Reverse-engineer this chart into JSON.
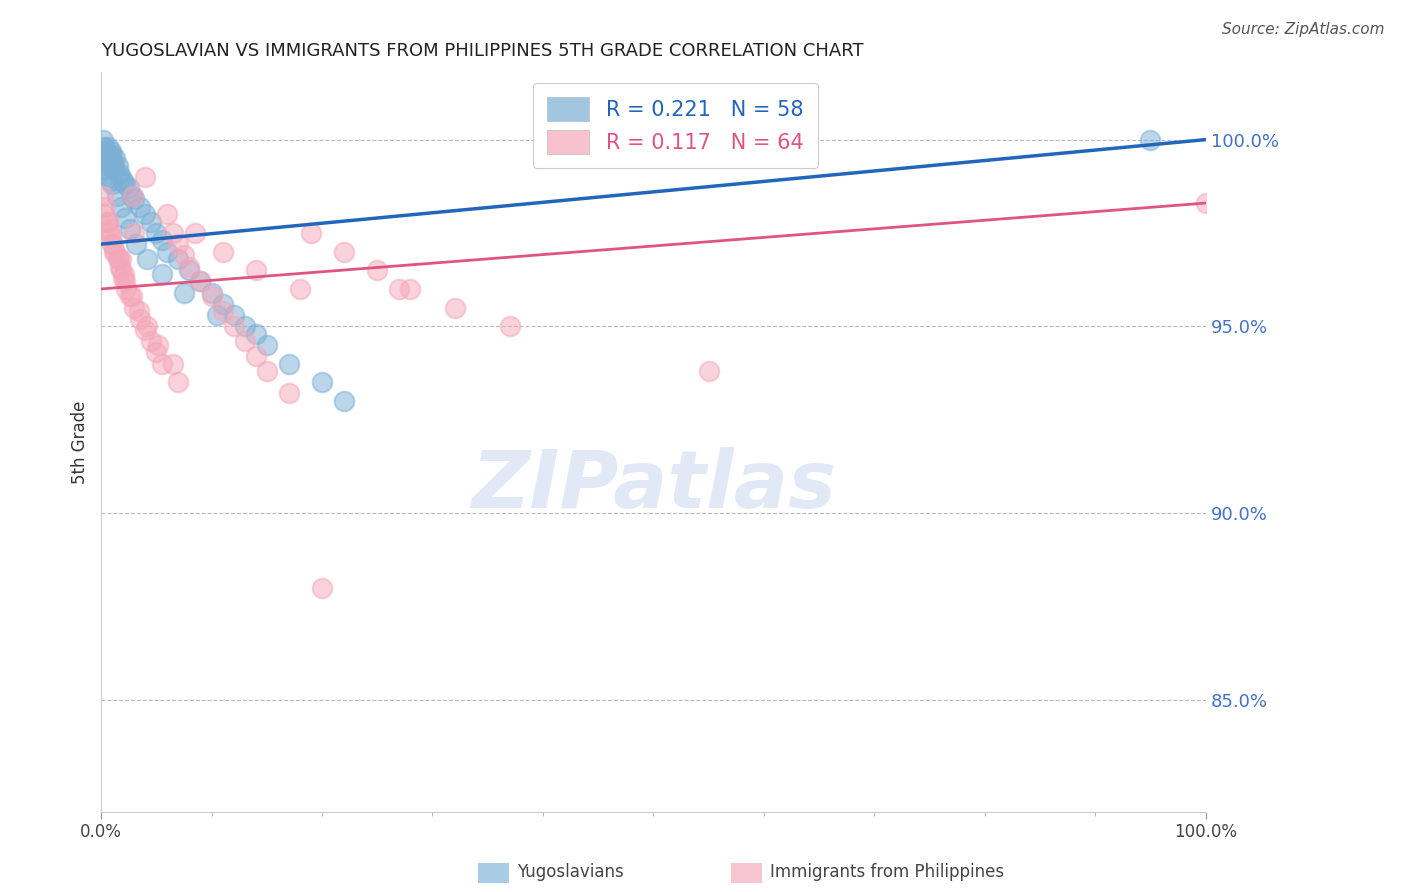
{
  "title": "YUGOSLAVIAN VS IMMIGRANTS FROM PHILIPPINES 5TH GRADE CORRELATION CHART",
  "source": "Source: ZipAtlas.com",
  "ylabel": "5th Grade",
  "xmin": 0.0,
  "xmax": 100.0,
  "ymin": 82.0,
  "ymax": 101.8,
  "yticks": [
    85.0,
    90.0,
    95.0,
    100.0
  ],
  "blue_R": 0.221,
  "blue_N": 58,
  "pink_R": 0.117,
  "pink_N": 64,
  "blue_color": "#7bafd4",
  "pink_color": "#f4a7b9",
  "blue_line_color": "#2266bb",
  "pink_line_color": "#e05580",
  "blue_line_x0": 0,
  "blue_line_x1": 100,
  "blue_line_y0": 97.2,
  "blue_line_y1": 100.0,
  "pink_line_x0": 0,
  "pink_line_x1": 100,
  "pink_line_y0": 96.0,
  "pink_line_y1": 98.3,
  "legend_label_blue": "Yugoslavians",
  "legend_label_pink": "Immigrants from Philippines",
  "watermark_text": "ZIPatlas",
  "blue_scatter_x": [
    0.2,
    0.3,
    0.4,
    0.5,
    0.5,
    0.6,
    0.6,
    0.7,
    0.8,
    0.9,
    1.0,
    1.0,
    1.1,
    1.2,
    1.3,
    1.5,
    1.6,
    1.8,
    2.0,
    2.2,
    2.5,
    2.8,
    3.0,
    3.5,
    4.0,
    4.5,
    5.0,
    5.5,
    6.0,
    7.0,
    8.0,
    9.0,
    10.0,
    11.0,
    12.0,
    13.0,
    14.0,
    15.0,
    17.0,
    20.0,
    22.0,
    0.4,
    0.6,
    0.8,
    1.0,
    1.4,
    1.8,
    2.2,
    2.6,
    3.2,
    4.2,
    5.5,
    7.5,
    10.5,
    0.3,
    0.5,
    0.9,
    95.0
  ],
  "blue_scatter_y": [
    100.0,
    99.8,
    99.7,
    99.6,
    99.5,
    99.8,
    99.4,
    99.6,
    99.5,
    99.7,
    99.3,
    99.6,
    99.4,
    99.2,
    99.5,
    99.3,
    99.1,
    99.0,
    98.9,
    98.8,
    98.7,
    98.5,
    98.4,
    98.2,
    98.0,
    97.8,
    97.5,
    97.3,
    97.0,
    96.8,
    96.5,
    96.2,
    95.9,
    95.6,
    95.3,
    95.0,
    94.8,
    94.5,
    94.0,
    93.5,
    93.0,
    99.5,
    99.3,
    99.0,
    98.8,
    98.5,
    98.2,
    97.9,
    97.6,
    97.2,
    96.8,
    96.4,
    95.9,
    95.3,
    99.2,
    99.4,
    98.9,
    100.0
  ],
  "pink_scatter_x": [
    0.2,
    0.4,
    0.6,
    0.8,
    1.0,
    1.2,
    1.5,
    1.8,
    2.0,
    2.3,
    2.6,
    3.0,
    3.5,
    4.0,
    4.5,
    5.0,
    5.5,
    6.0,
    6.5,
    7.0,
    7.5,
    8.0,
    9.0,
    10.0,
    11.0,
    12.0,
    13.0,
    14.0,
    15.0,
    17.0,
    19.0,
    22.0,
    25.0,
    28.0,
    32.0,
    37.0,
    0.5,
    0.9,
    1.3,
    1.7,
    2.2,
    2.8,
    3.4,
    4.2,
    5.2,
    6.5,
    8.5,
    11.0,
    14.0,
    18.0,
    0.3,
    0.7,
    1.1,
    1.6,
    2.1,
    2.9,
    4.0,
    55.0,
    100.0,
    20.0,
    7.0,
    3.0,
    1.8,
    27.0
  ],
  "pink_scatter_y": [
    98.5,
    98.2,
    97.8,
    97.5,
    97.2,
    97.0,
    96.8,
    96.5,
    96.3,
    96.0,
    95.8,
    95.5,
    95.2,
    94.9,
    94.6,
    94.3,
    94.0,
    98.0,
    97.5,
    97.2,
    96.9,
    96.6,
    96.2,
    95.8,
    95.4,
    95.0,
    94.6,
    94.2,
    93.8,
    93.2,
    97.5,
    97.0,
    96.5,
    96.0,
    95.5,
    95.0,
    97.8,
    97.4,
    97.0,
    96.6,
    96.2,
    95.8,
    95.4,
    95.0,
    94.5,
    94.0,
    97.5,
    97.0,
    96.5,
    96.0,
    98.0,
    97.6,
    97.2,
    96.8,
    96.4,
    98.5,
    99.0,
    93.8,
    98.3,
    88.0,
    93.5,
    97.5,
    96.8,
    96.0
  ]
}
